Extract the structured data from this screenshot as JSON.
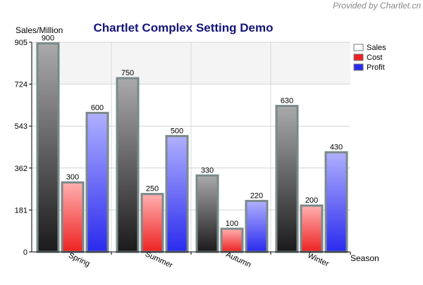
{
  "watermark": "Provided by Chartlet.cn",
  "colors": {
    "sales_top": "#aaaaaa",
    "sales_bottom": "#1a1a1a",
    "cost_top": "#ffb0b0",
    "cost_bottom": "#ee2222",
    "profit_top": "#b0b0ff",
    "profit_bottom": "#2a2aee",
    "bar_border": "#7a8a8a",
    "title": "#14147a"
  },
  "chart_data": {
    "type": "bar",
    "title": "Chartlet Complex Setting Demo",
    "xlabel": "Season",
    "ylabel": "Sales/Million",
    "categories": [
      "Spring",
      "Summer",
      "Autumn",
      "Winter"
    ],
    "series": [
      {
        "name": "Sales",
        "values": [
          900,
          750,
          330,
          630
        ]
      },
      {
        "name": "Cost",
        "values": [
          300,
          250,
          100,
          200
        ]
      },
      {
        "name": "Profit",
        "values": [
          600,
          500,
          220,
          430
        ]
      }
    ],
    "yticks": [
      "0",
      "181",
      "362",
      "543",
      "724",
      "905"
    ],
    "ylim": [
      0,
      905
    ],
    "grid": true,
    "legend_position": "right"
  }
}
